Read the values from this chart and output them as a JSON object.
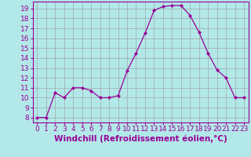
{
  "x": [
    0,
    1,
    2,
    3,
    4,
    5,
    6,
    7,
    8,
    9,
    10,
    11,
    12,
    13,
    14,
    15,
    16,
    17,
    18,
    19,
    20,
    21,
    22,
    23
  ],
  "y": [
    8,
    8,
    10.5,
    10,
    11,
    11,
    10.7,
    10,
    10,
    10.2,
    12.7,
    14.5,
    16.5,
    18.8,
    19.2,
    19.3,
    19.3,
    18.3,
    16.6,
    14.5,
    12.8,
    12,
    10,
    10
  ],
  "line_color": "#990099",
  "marker": "D",
  "marker_size": 2.0,
  "bg_color": "#b3e8e8",
  "grid_color": "#999999",
  "xlabel": "Windchill (Refroidissement éolien,°C)",
  "ylim": [
    7.5,
    19.7
  ],
  "xlim": [
    -0.5,
    23.5
  ],
  "yticks": [
    8,
    9,
    10,
    11,
    12,
    13,
    14,
    15,
    16,
    17,
    18,
    19
  ],
  "xticks": [
    0,
    1,
    2,
    3,
    4,
    5,
    6,
    7,
    8,
    9,
    10,
    11,
    12,
    13,
    14,
    15,
    16,
    17,
    18,
    19,
    20,
    21,
    22,
    23
  ],
  "tick_fontsize": 6.5,
  "xlabel_fontsize": 7.5
}
